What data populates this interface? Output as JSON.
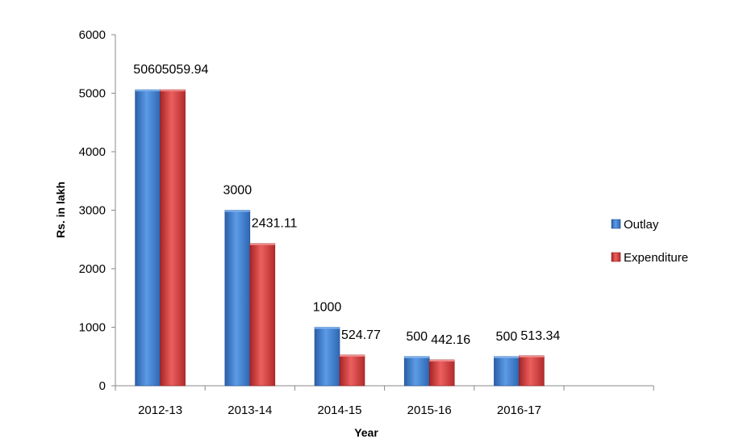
{
  "chart_data": {
    "type": "bar",
    "title": "",
    "xlabel": "Year",
    "ylabel": "Rs. in lakh",
    "ylim": [
      0,
      6000
    ],
    "yticks": [
      0,
      1000,
      2000,
      3000,
      4000,
      5000,
      6000
    ],
    "categories": [
      "2012-13",
      "2013-14",
      "2014-15",
      "2015-16",
      "2016-17"
    ],
    "series": [
      {
        "name": "Outlay",
        "values": [
          5060,
          3000,
          1000,
          500,
          500
        ],
        "labels": [
          "5060",
          "3000",
          "1000",
          "500",
          "500"
        ],
        "color": "#3f7fd0"
      },
      {
        "name": "Expenditure",
        "values": [
          5059.94,
          2431.11,
          524.77,
          442.16,
          513.34
        ],
        "labels": [
          "5059.94",
          "2431.11",
          "524.77",
          "442.16",
          "513.34"
        ],
        "color": "#d13a3a"
      }
    ],
    "legend": "right",
    "grid": false
  }
}
